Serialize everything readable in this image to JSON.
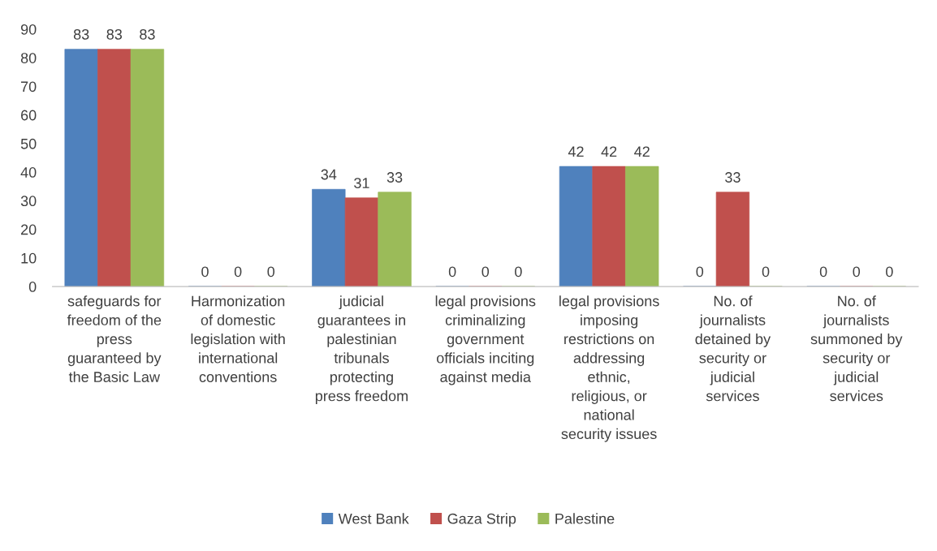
{
  "chart_data": {
    "type": "bar",
    "categories": [
      "safeguards for\nfreedom of the\npress\nguaranteed by\nthe Basic Law",
      "Harmonization\nof domestic\nlegislation with\ninternational\nconventions",
      "judicial\nguarantees in\npalestinian\ntribunals\nprotecting\npress freedom",
      "legal provisions\ncriminalizing\ngovernment\nofficials inciting\nagainst media",
      "legal provisions\nimposing\nrestrictions on\naddressing\nethnic,\nreligious, or\nnational\nsecurity issues",
      "No. of\njournalists\ndetained by\nsecurity or\njudicial\nservices",
      "No. of\njournalists\nsummoned by\nsecurity or\njudicial\nservices"
    ],
    "series": [
      {
        "name": "West Bank",
        "color": "#4f81bd",
        "values": [
          83,
          0,
          34,
          0,
          42,
          0,
          0
        ]
      },
      {
        "name": "Gaza Strip",
        "color": "#c0504d",
        "values": [
          83,
          0,
          31,
          0,
          42,
          33,
          0
        ]
      },
      {
        "name": "Palestine",
        "color": "#9bbb59",
        "values": [
          83,
          0,
          33,
          0,
          42,
          0,
          0
        ]
      }
    ],
    "ylim": [
      0,
      90
    ],
    "yticks": [
      0,
      10,
      20,
      30,
      40,
      50,
      60,
      70,
      80,
      90
    ],
    "data_labels": true,
    "legend": "bottom",
    "grid": false
  }
}
